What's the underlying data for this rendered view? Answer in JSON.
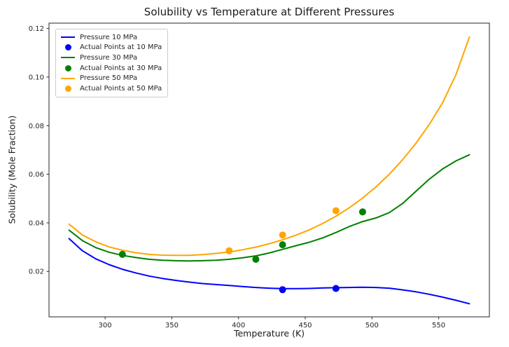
{
  "chart_data": {
    "type": "line",
    "title": "Solubility vs Temperature at Different Pressures",
    "xlabel": "Temperature (K)",
    "ylabel": "Solubility (Mole Fraction)",
    "xlim": [
      258,
      588
    ],
    "ylim": [
      0.0013,
      0.1222
    ],
    "xticks": [
      300,
      350,
      400,
      450,
      500,
      550
    ],
    "yticks": [
      0.02,
      0.04,
      0.06,
      0.08,
      0.1,
      0.12
    ],
    "grid": false,
    "legend_position": "upper left",
    "x": [
      273,
      283,
      293,
      303,
      313,
      323,
      333,
      343,
      353,
      363,
      373,
      383,
      393,
      403,
      413,
      423,
      433,
      443,
      453,
      463,
      473,
      483,
      493,
      503,
      513,
      523,
      533,
      543,
      553,
      563,
      573
    ],
    "series": [
      {
        "name": "Pressure 10 MPa",
        "kind": "line",
        "color": "#0000ff",
        "values": [
          0.0335,
          0.0285,
          0.0252,
          0.0228,
          0.0209,
          0.0194,
          0.0181,
          0.0171,
          0.0163,
          0.0156,
          0.015,
          0.0146,
          0.0142,
          0.0138,
          0.0134,
          0.0131,
          0.0129,
          0.0129,
          0.013,
          0.0132,
          0.0133,
          0.0134,
          0.0135,
          0.0134,
          0.0131,
          0.0124,
          0.0116,
          0.0106,
          0.0094,
          0.0081,
          0.0067
        ]
      },
      {
        "name": "Actual Points at 10 MPa",
        "kind": "scatter",
        "color": "#0000ff",
        "points": [
          [
            433,
            0.0125
          ],
          [
            473,
            0.013
          ]
        ]
      },
      {
        "name": "Pressure 30 MPa",
        "kind": "line",
        "color": "#008000",
        "values": [
          0.037,
          0.0327,
          0.0298,
          0.0279,
          0.0266,
          0.0257,
          0.025,
          0.0246,
          0.0244,
          0.0243,
          0.0244,
          0.0246,
          0.025,
          0.0256,
          0.0264,
          0.0276,
          0.0291,
          0.0306,
          0.032,
          0.0338,
          0.036,
          0.0385,
          0.0405,
          0.042,
          0.0442,
          0.048,
          0.053,
          0.058,
          0.0622,
          0.0655,
          0.068
        ]
      },
      {
        "name": "Actual Points at 30 MPa",
        "kind": "scatter",
        "color": "#008000",
        "points": [
          [
            313,
            0.027
          ],
          [
            413,
            0.025
          ],
          [
            433,
            0.031
          ],
          [
            493,
            0.0445
          ]
        ]
      },
      {
        "name": "Pressure 50 MPa",
        "kind": "line",
        "color": "#ffa500",
        "values": [
          0.0395,
          0.035,
          0.0322,
          0.0301,
          0.0287,
          0.0277,
          0.027,
          0.0267,
          0.0266,
          0.0266,
          0.0269,
          0.0274,
          0.028,
          0.0289,
          0.03,
          0.0314,
          0.033,
          0.0349,
          0.0371,
          0.0397,
          0.0427,
          0.0462,
          0.0502,
          0.0548,
          0.06,
          0.066,
          0.0728,
          0.0805,
          0.0895,
          0.101,
          0.1165
        ]
      },
      {
        "name": "Actual Points at 50 MPa",
        "kind": "scatter",
        "color": "#ffa500",
        "points": [
          [
            393,
            0.0285
          ],
          [
            433,
            0.035
          ],
          [
            473,
            0.045
          ]
        ]
      }
    ]
  }
}
